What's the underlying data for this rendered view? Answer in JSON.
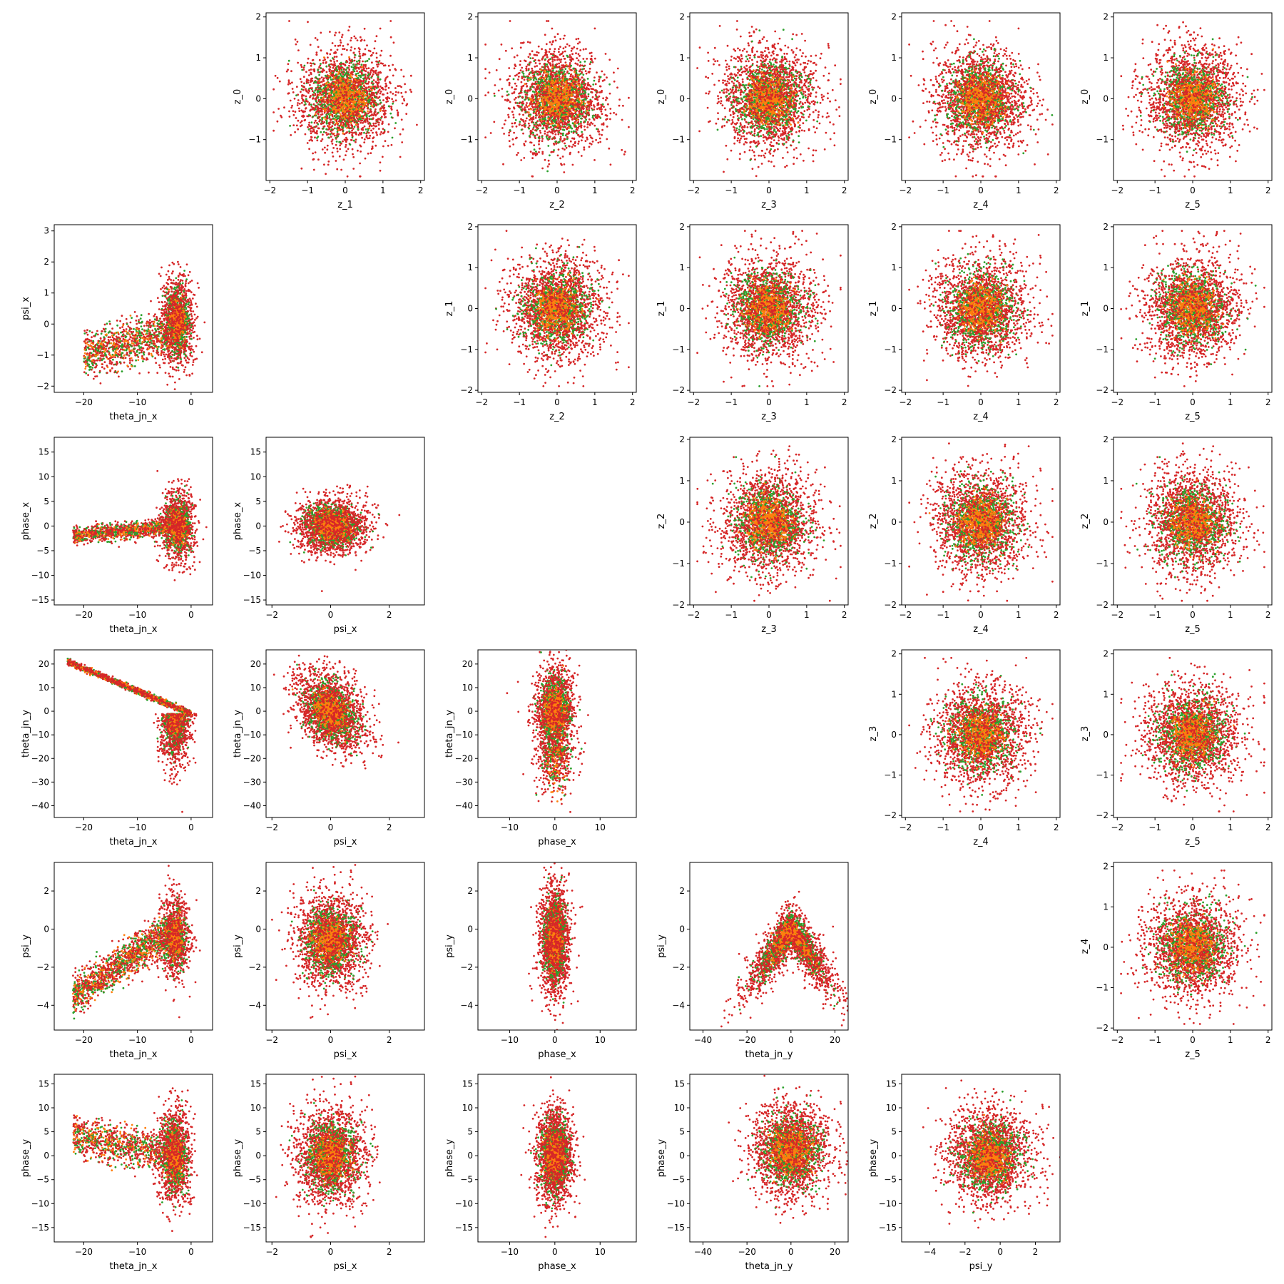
{
  "chart_data": {
    "type": "scatter",
    "layout": "6x6 grid; upper triangle (rows 0-4): latent z_i vs z_j; lower triangle (rows 1-5): physical parameter pairs; diagonal and remaining cells empty",
    "series_colors": {
      "red": "#d62728",
      "green": "#2ca02c",
      "orange": "#ff7f0e"
    },
    "panels": [
      {
        "row": 0,
        "col": 1,
        "xlabel": "z_1",
        "ylabel": "z_0",
        "xlim": [
          -2.1,
          2.1
        ],
        "ylim": [
          -2.0,
          2.1
        ],
        "xticks": [
          -2,
          -1,
          0,
          1,
          2
        ],
        "yticks": [
          -1,
          0,
          1,
          2
        ],
        "kind": "iso",
        "sd": [
          0.6,
          0.6
        ]
      },
      {
        "row": 0,
        "col": 2,
        "xlabel": "z_2",
        "ylabel": "z_0",
        "xlim": [
          -2.1,
          2.1
        ],
        "ylim": [
          -2.0,
          2.1
        ],
        "xticks": [
          -2,
          -1,
          0,
          1,
          2
        ],
        "yticks": [
          -1,
          0,
          1,
          2
        ],
        "kind": "iso",
        "sd": [
          0.6,
          0.6
        ]
      },
      {
        "row": 0,
        "col": 3,
        "xlabel": "z_3",
        "ylabel": "z_0",
        "xlim": [
          -2.1,
          2.1
        ],
        "ylim": [
          -2.0,
          2.1
        ],
        "xticks": [
          -2,
          -1,
          0,
          1,
          2
        ],
        "yticks": [
          -1,
          0,
          1,
          2
        ],
        "kind": "iso",
        "sd": [
          0.6,
          0.6
        ]
      },
      {
        "row": 0,
        "col": 4,
        "xlabel": "z_4",
        "ylabel": "z_0",
        "xlim": [
          -2.1,
          2.1
        ],
        "ylim": [
          -2.0,
          2.1
        ],
        "xticks": [
          -2,
          -1,
          0,
          1,
          2
        ],
        "yticks": [
          -1,
          0,
          1,
          2
        ],
        "kind": "iso",
        "sd": [
          0.6,
          0.6
        ]
      },
      {
        "row": 0,
        "col": 5,
        "xlabel": "z_5",
        "ylabel": "z_0",
        "xlim": [
          -2.1,
          2.1
        ],
        "ylim": [
          -2.0,
          2.1
        ],
        "xticks": [
          -2,
          -1,
          0,
          1,
          2
        ],
        "yticks": [
          -1,
          0,
          1,
          2
        ],
        "kind": "iso",
        "sd": [
          0.6,
          0.6
        ]
      },
      {
        "row": 1,
        "col": 0,
        "xlabel": "theta_jn_x",
        "ylabel": "psi_x",
        "xlim": [
          -25.5,
          4
        ],
        "ylim": [
          -2.2,
          3.2
        ],
        "xticks": [
          -20,
          -10,
          0
        ],
        "yticks": [
          -2,
          -1,
          0,
          1,
          2,
          3
        ],
        "kind": "psix_thx"
      },
      {
        "row": 1,
        "col": 2,
        "xlabel": "z_2",
        "ylabel": "z_1",
        "xlim": [
          -2.1,
          2.1
        ],
        "ylim": [
          -2.05,
          2.05
        ],
        "xticks": [
          -2,
          -1,
          0,
          1,
          2
        ],
        "yticks": [
          -2,
          -1,
          0,
          1,
          2
        ],
        "kind": "iso",
        "sd": [
          0.6,
          0.6
        ]
      },
      {
        "row": 1,
        "col": 3,
        "xlabel": "z_3",
        "ylabel": "z_1",
        "xlim": [
          -2.1,
          2.1
        ],
        "ylim": [
          -2.05,
          2.05
        ],
        "xticks": [
          -2,
          -1,
          0,
          1,
          2
        ],
        "yticks": [
          -2,
          -1,
          0,
          1,
          2
        ],
        "kind": "iso",
        "sd": [
          0.6,
          0.6
        ]
      },
      {
        "row": 1,
        "col": 4,
        "xlabel": "z_4",
        "ylabel": "z_1",
        "xlim": [
          -2.1,
          2.1
        ],
        "ylim": [
          -2.05,
          2.05
        ],
        "xticks": [
          -2,
          -1,
          0,
          1,
          2
        ],
        "yticks": [
          -2,
          -1,
          0,
          1,
          2
        ],
        "kind": "iso",
        "sd": [
          0.6,
          0.6
        ]
      },
      {
        "row": 1,
        "col": 5,
        "xlabel": "z_5",
        "ylabel": "z_1",
        "xlim": [
          -2.1,
          2.1
        ],
        "ylim": [
          -2.05,
          2.05
        ],
        "xticks": [
          -2,
          -1,
          0,
          1,
          2
        ],
        "yticks": [
          -2,
          -1,
          0,
          1,
          2
        ],
        "kind": "iso",
        "sd": [
          0.6,
          0.6
        ]
      },
      {
        "row": 2,
        "col": 0,
        "xlabel": "theta_jn_x",
        "ylabel": "phase_x",
        "xlim": [
          -25.5,
          4
        ],
        "ylim": [
          -16,
          18
        ],
        "xticks": [
          -20,
          -10,
          0
        ],
        "yticks": [
          -15,
          -10,
          -5,
          0,
          5,
          10,
          15
        ],
        "kind": "phx_thx"
      },
      {
        "row": 2,
        "col": 1,
        "xlabel": "psi_x",
        "ylabel": "phase_x",
        "xlim": [
          -2.2,
          3.2
        ],
        "ylim": [
          -16,
          18
        ],
        "xticks": [
          -2,
          0,
          2
        ],
        "yticks": [
          -15,
          -10,
          -5,
          0,
          5,
          10,
          15
        ],
        "kind": "phx_psx"
      },
      {
        "row": 2,
        "col": 3,
        "xlabel": "z_3",
        "ylabel": "z_2",
        "xlim": [
          -2.1,
          2.1
        ],
        "ylim": [
          -2.0,
          2.05
        ],
        "xticks": [
          -2,
          -1,
          0,
          1,
          2
        ],
        "yticks": [
          -2,
          -1,
          0,
          1,
          2
        ],
        "kind": "iso",
        "sd": [
          0.6,
          0.6
        ]
      },
      {
        "row": 2,
        "col": 4,
        "xlabel": "z_4",
        "ylabel": "z_2",
        "xlim": [
          -2.1,
          2.1
        ],
        "ylim": [
          -2.0,
          2.05
        ],
        "xticks": [
          -2,
          -1,
          0,
          1,
          2
        ],
        "yticks": [
          -2,
          -1,
          0,
          1,
          2
        ],
        "kind": "iso",
        "sd": [
          0.6,
          0.6
        ]
      },
      {
        "row": 2,
        "col": 5,
        "xlabel": "z_5",
        "ylabel": "z_2",
        "xlim": [
          -2.1,
          2.1
        ],
        "ylim": [
          -2.0,
          2.05
        ],
        "xticks": [
          -2,
          -1,
          0,
          1,
          2
        ],
        "yticks": [
          -2,
          -1,
          0,
          1,
          2
        ],
        "kind": "iso",
        "sd": [
          0.6,
          0.6
        ]
      },
      {
        "row": 3,
        "col": 0,
        "xlabel": "theta_jn_x",
        "ylabel": "theta_jn_y",
        "xlim": [
          -25.5,
          4
        ],
        "ylim": [
          -45,
          26
        ],
        "xticks": [
          -20,
          -10,
          0
        ],
        "yticks": [
          -40,
          -30,
          -20,
          -10,
          0,
          10,
          20
        ],
        "kind": "thy_thx"
      },
      {
        "row": 3,
        "col": 1,
        "xlabel": "psi_x",
        "ylabel": "theta_jn_y",
        "xlim": [
          -2.2,
          3.2
        ],
        "ylim": [
          -45,
          26
        ],
        "xticks": [
          -2,
          0,
          2
        ],
        "yticks": [
          -40,
          -30,
          -20,
          -10,
          0,
          10,
          20
        ],
        "kind": "thy_psx"
      },
      {
        "row": 3,
        "col": 2,
        "xlabel": "phase_x",
        "ylabel": "theta_jn_y",
        "xlim": [
          -17,
          18
        ],
        "ylim": [
          -45,
          26
        ],
        "xticks": [
          -10,
          0,
          10
        ],
        "yticks": [
          -40,
          -30,
          -20,
          -10,
          0,
          10,
          20
        ],
        "kind": "thy_phx"
      },
      {
        "row": 3,
        "col": 4,
        "xlabel": "z_4",
        "ylabel": "z_3",
        "xlim": [
          -2.1,
          2.1
        ],
        "ylim": [
          -2.05,
          2.1
        ],
        "xticks": [
          -2,
          -1,
          0,
          1,
          2
        ],
        "yticks": [
          -2,
          -1,
          0,
          1,
          2
        ],
        "kind": "iso",
        "sd": [
          0.6,
          0.6
        ]
      },
      {
        "row": 3,
        "col": 5,
        "xlabel": "z_5",
        "ylabel": "z_3",
        "xlim": [
          -2.1,
          2.1
        ],
        "ylim": [
          -2.05,
          2.1
        ],
        "xticks": [
          -2,
          -1,
          0,
          1,
          2
        ],
        "yticks": [
          -2,
          -1,
          0,
          1,
          2
        ],
        "kind": "iso",
        "sd": [
          0.6,
          0.6
        ]
      },
      {
        "row": 4,
        "col": 0,
        "xlabel": "theta_jn_x",
        "ylabel": "psi_y",
        "xlim": [
          -25.5,
          4
        ],
        "ylim": [
          -5.3,
          3.5
        ],
        "xticks": [
          -20,
          -10,
          0
        ],
        "yticks": [
          -4,
          -2,
          0,
          2
        ],
        "kind": "psy_thx"
      },
      {
        "row": 4,
        "col": 1,
        "xlabel": "psi_x",
        "ylabel": "psi_y",
        "xlim": [
          -2.2,
          3.2
        ],
        "ylim": [
          -5.3,
          3.5
        ],
        "xticks": [
          -2,
          0,
          2
        ],
        "yticks": [
          -4,
          -2,
          0,
          2
        ],
        "kind": "psy_psx"
      },
      {
        "row": 4,
        "col": 2,
        "xlabel": "phase_x",
        "ylabel": "psi_y",
        "xlim": [
          -17,
          18
        ],
        "ylim": [
          -5.3,
          3.5
        ],
        "xticks": [
          -10,
          0,
          10
        ],
        "yticks": [
          -4,
          -2,
          0,
          2
        ],
        "kind": "psy_phx"
      },
      {
        "row": 4,
        "col": 3,
        "xlabel": "theta_jn_y",
        "ylabel": "psi_y",
        "xlim": [
          -46,
          26
        ],
        "ylim": [
          -5.3,
          3.5
        ],
        "xticks": [
          -40,
          -20,
          0,
          20
        ],
        "yticks": [
          -4,
          -2,
          0,
          2
        ],
        "kind": "psy_thy"
      },
      {
        "row": 4,
        "col": 5,
        "xlabel": "z_5",
        "ylabel": "z_4",
        "xlim": [
          -2.1,
          2.1
        ],
        "ylim": [
          -2.05,
          2.1
        ],
        "xticks": [
          -2,
          -1,
          0,
          1,
          2
        ],
        "yticks": [
          -2,
          -1,
          0,
          1,
          2
        ],
        "kind": "iso",
        "sd": [
          0.6,
          0.6
        ]
      },
      {
        "row": 5,
        "col": 0,
        "xlabel": "theta_jn_x",
        "ylabel": "phase_y",
        "xlim": [
          -25.5,
          4
        ],
        "ylim": [
          -18,
          17
        ],
        "xticks": [
          -20,
          -10,
          0
        ],
        "yticks": [
          -15,
          -10,
          -5,
          0,
          5,
          10,
          15
        ],
        "kind": "phy_thx"
      },
      {
        "row": 5,
        "col": 1,
        "xlabel": "psi_x",
        "ylabel": "phase_y",
        "xlim": [
          -2.2,
          3.2
        ],
        "ylim": [
          -18,
          17
        ],
        "xticks": [
          -2,
          0,
          2
        ],
        "yticks": [
          -15,
          -10,
          -5,
          0,
          5,
          10,
          15
        ],
        "kind": "phy_psx"
      },
      {
        "row": 5,
        "col": 2,
        "xlabel": "phase_x",
        "ylabel": "phase_y",
        "xlim": [
          -17,
          18
        ],
        "ylim": [
          -18,
          17
        ],
        "xticks": [
          -10,
          0,
          10
        ],
        "yticks": [
          -15,
          -10,
          -5,
          0,
          5,
          10,
          15
        ],
        "kind": "phy_phx"
      },
      {
        "row": 5,
        "col": 3,
        "xlabel": "theta_jn_y",
        "ylabel": "phase_y",
        "xlim": [
          -46,
          26
        ],
        "ylim": [
          -18,
          17
        ],
        "xticks": [
          -40,
          -20,
          0,
          20
        ],
        "yticks": [
          -15,
          -10,
          -5,
          0,
          5,
          10,
          15
        ],
        "kind": "phy_thy"
      },
      {
        "row": 5,
        "col": 4,
        "xlabel": "psi_y",
        "ylabel": "phase_y",
        "xlim": [
          -5.6,
          3.4
        ],
        "ylim": [
          -18,
          17
        ],
        "xticks": [
          -4,
          -2,
          0,
          2
        ],
        "yticks": [
          -15,
          -10,
          -5,
          0,
          5,
          10,
          15
        ],
        "kind": "phy_psy"
      }
    ]
  }
}
